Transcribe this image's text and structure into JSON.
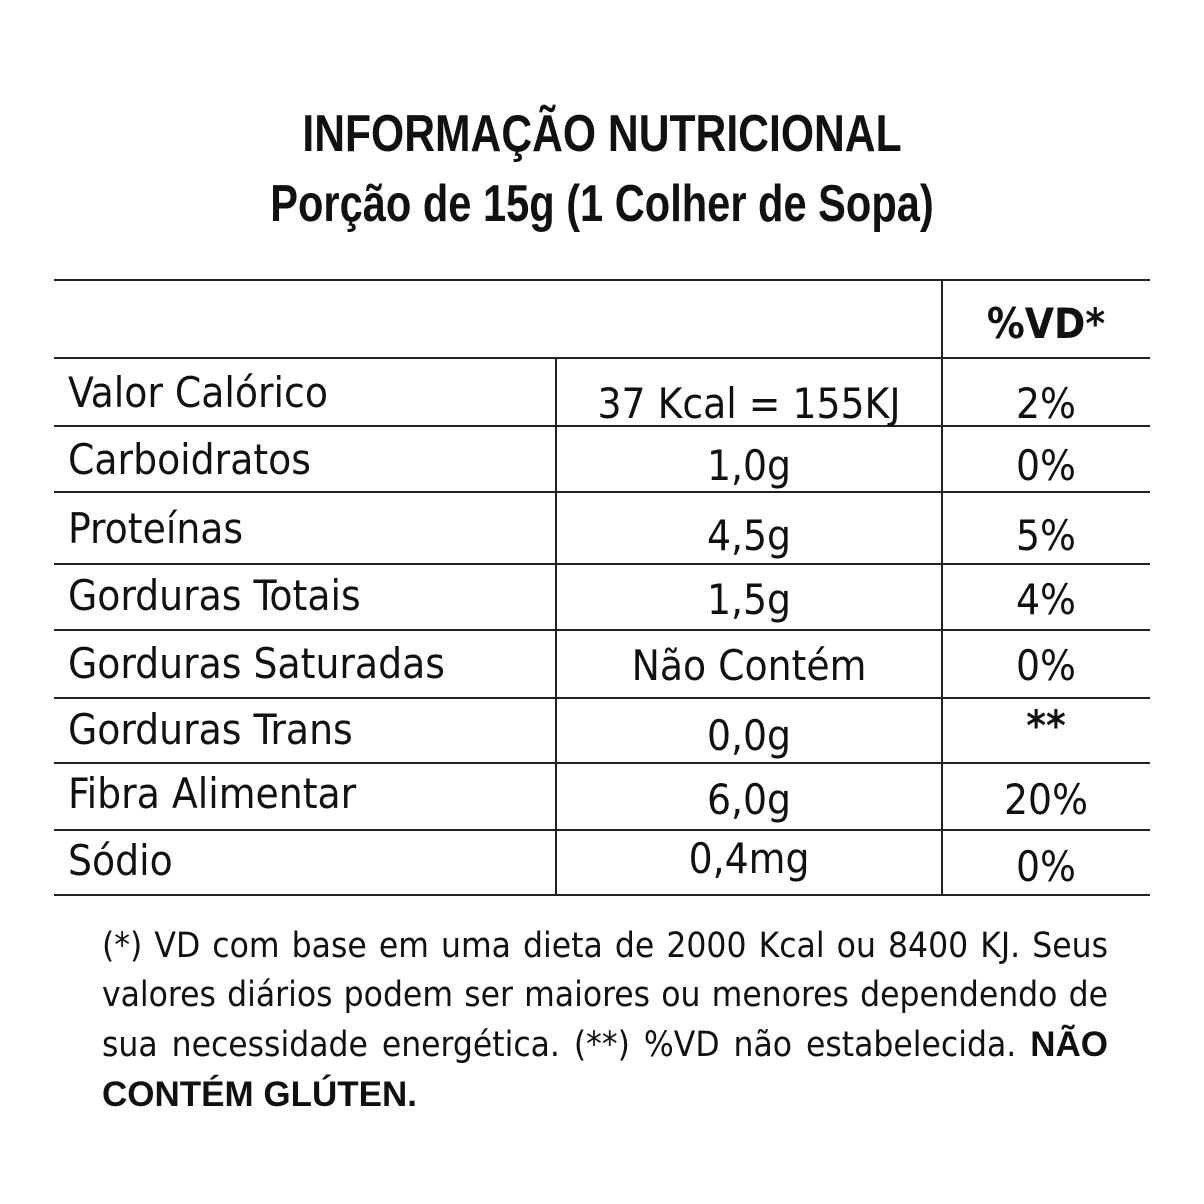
{
  "header": {
    "title": "INFORMAÇÃO NUTRICIONAL",
    "portion": "Porção de 15g (1 Colher de Sopa)"
  },
  "table": {
    "pct_header": "%VD*",
    "rows": [
      {
        "label": "Valor Calórico",
        "value": "37 Kcal = 155KJ",
        "pct": "2%"
      },
      {
        "label": "Carboidratos",
        "value": "1,0g",
        "pct": "0%"
      },
      {
        "label": "Proteínas",
        "value": "4,5g",
        "pct": "5%"
      },
      {
        "label": "Gorduras Totais",
        "value": "1,5g",
        "pct": "4%"
      },
      {
        "label": "Gorduras Saturadas",
        "value": "Não Contém",
        "pct": "0%"
      },
      {
        "label": "Gorduras Trans",
        "value": "0,0g",
        "pct": "**"
      },
      {
        "label": "Fibra Alimentar",
        "value": "6,0g",
        "pct": "20%"
      },
      {
        "label": "Sódio",
        "value": "0,4mg",
        "pct": "0%"
      }
    ]
  },
  "footnote": {
    "text": "(*) VD com base em uma dieta de 2000 Kcal ou 8400 KJ. Seus valores diários podem ser maiores ou menores dependendo de sua necessidade energética. (**) %VD não estabelecida.",
    "emphasis": "NÃO CONTÉM GLÚTEN."
  }
}
